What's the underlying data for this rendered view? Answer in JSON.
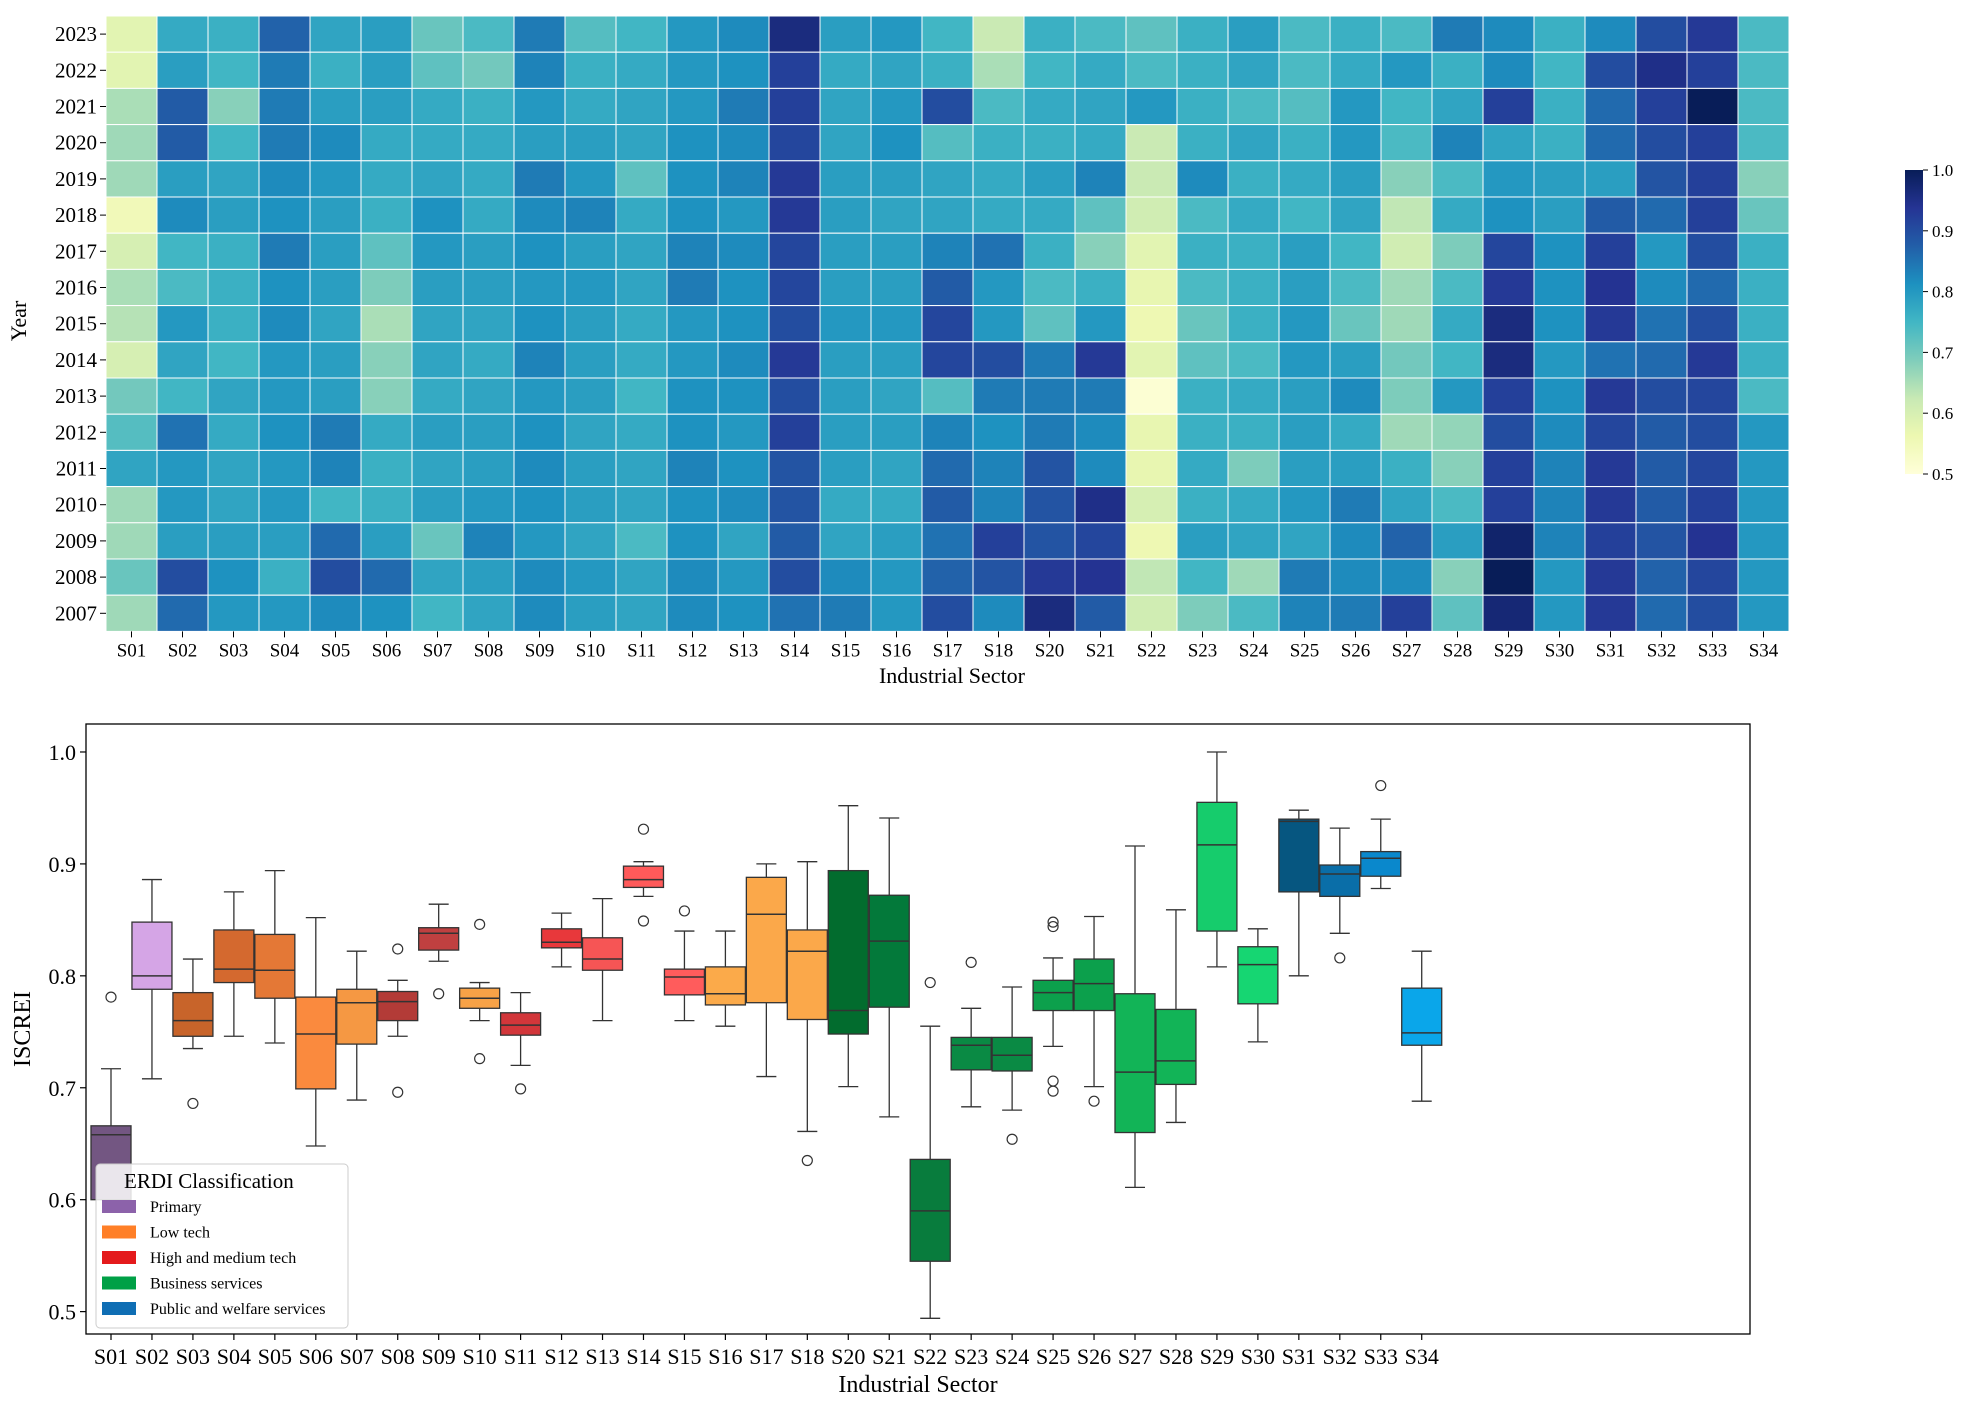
{
  "chart_data": [
    {
      "type": "heatmap",
      "xlabel": "Industrial Sector",
      "ylabel": "Year",
      "x_categories": [
        "S01",
        "S02",
        "S03",
        "S04",
        "S05",
        "S06",
        "S07",
        "S08",
        "S09",
        "S10",
        "S11",
        "S12",
        "S13",
        "S14",
        "S15",
        "S16",
        "S17",
        "S18",
        "S20",
        "S21",
        "S22",
        "S23",
        "S24",
        "S25",
        "S26",
        "S27",
        "S28",
        "S29",
        "S30",
        "S31",
        "S32",
        "S33",
        "S34"
      ],
      "y_categories": [
        "2023",
        "2022",
        "2021",
        "2020",
        "2019",
        "2018",
        "2017",
        "2016",
        "2015",
        "2014",
        "2013",
        "2012",
        "2011",
        "2010",
        "2009",
        "2008",
        "2007"
      ],
      "colorbar": {
        "min": 0.5,
        "max": 1.0,
        "ticks": [
          "0.5",
          "0.6",
          "0.7",
          "0.8",
          "0.9",
          "1.0"
        ],
        "colormap": "YlGnBu"
      },
      "values": [
        [
          0.58,
          0.77,
          0.76,
          0.87,
          0.78,
          0.79,
          0.71,
          0.74,
          0.84,
          0.73,
          0.75,
          0.8,
          0.82,
          0.96,
          0.79,
          0.8,
          0.75,
          0.62,
          0.76,
          0.74,
          0.72,
          0.76,
          0.79,
          0.74,
          0.76,
          0.74,
          0.84,
          0.82,
          0.76,
          0.82,
          0.9,
          0.93,
          0.74
        ],
        [
          0.58,
          0.79,
          0.75,
          0.84,
          0.76,
          0.79,
          0.72,
          0.7,
          0.83,
          0.76,
          0.77,
          0.8,
          0.81,
          0.92,
          0.77,
          0.78,
          0.76,
          0.65,
          0.75,
          0.77,
          0.74,
          0.76,
          0.78,
          0.74,
          0.77,
          0.8,
          0.76,
          0.82,
          0.75,
          0.9,
          0.95,
          0.92,
          0.74
        ],
        [
          0.65,
          0.88,
          0.68,
          0.84,
          0.79,
          0.79,
          0.77,
          0.76,
          0.8,
          0.77,
          0.78,
          0.8,
          0.84,
          0.92,
          0.78,
          0.8,
          0.9,
          0.74,
          0.77,
          0.78,
          0.8,
          0.76,
          0.74,
          0.73,
          0.8,
          0.75,
          0.78,
          0.92,
          0.76,
          0.86,
          0.92,
          1.0,
          0.74
        ],
        [
          0.66,
          0.88,
          0.75,
          0.84,
          0.82,
          0.77,
          0.77,
          0.77,
          0.79,
          0.79,
          0.78,
          0.81,
          0.82,
          0.91,
          0.78,
          0.81,
          0.73,
          0.76,
          0.76,
          0.77,
          0.62,
          0.76,
          0.78,
          0.76,
          0.8,
          0.74,
          0.83,
          0.78,
          0.76,
          0.86,
          0.9,
          0.92,
          0.74
        ],
        [
          0.66,
          0.79,
          0.78,
          0.82,
          0.8,
          0.77,
          0.78,
          0.77,
          0.84,
          0.8,
          0.72,
          0.81,
          0.83,
          0.93,
          0.79,
          0.79,
          0.78,
          0.77,
          0.79,
          0.83,
          0.62,
          0.82,
          0.76,
          0.77,
          0.79,
          0.68,
          0.74,
          0.8,
          0.79,
          0.79,
          0.89,
          0.92,
          0.68
        ],
        [
          0.55,
          0.82,
          0.79,
          0.81,
          0.79,
          0.76,
          0.81,
          0.77,
          0.82,
          0.83,
          0.77,
          0.81,
          0.8,
          0.93,
          0.79,
          0.78,
          0.78,
          0.77,
          0.77,
          0.72,
          0.61,
          0.74,
          0.77,
          0.75,
          0.78,
          0.63,
          0.77,
          0.81,
          0.79,
          0.88,
          0.86,
          0.92,
          0.71
        ],
        [
          0.6,
          0.75,
          0.76,
          0.84,
          0.79,
          0.72,
          0.8,
          0.79,
          0.81,
          0.79,
          0.78,
          0.83,
          0.82,
          0.91,
          0.79,
          0.79,
          0.83,
          0.85,
          0.76,
          0.68,
          0.58,
          0.76,
          0.76,
          0.79,
          0.75,
          0.61,
          0.69,
          0.91,
          0.81,
          0.92,
          0.8,
          0.9,
          0.76
        ],
        [
          0.65,
          0.74,
          0.76,
          0.81,
          0.79,
          0.69,
          0.79,
          0.79,
          0.8,
          0.8,
          0.78,
          0.84,
          0.81,
          0.91,
          0.79,
          0.79,
          0.88,
          0.8,
          0.74,
          0.76,
          0.57,
          0.74,
          0.76,
          0.79,
          0.74,
          0.66,
          0.74,
          0.93,
          0.81,
          0.94,
          0.82,
          0.86,
          0.76
        ],
        [
          0.64,
          0.8,
          0.76,
          0.82,
          0.78,
          0.65,
          0.78,
          0.78,
          0.81,
          0.79,
          0.77,
          0.8,
          0.81,
          0.9,
          0.8,
          0.8,
          0.91,
          0.8,
          0.72,
          0.8,
          0.56,
          0.71,
          0.76,
          0.8,
          0.71,
          0.66,
          0.77,
          0.96,
          0.81,
          0.93,
          0.85,
          0.9,
          0.76
        ],
        [
          0.6,
          0.78,
          0.75,
          0.8,
          0.79,
          0.68,
          0.78,
          0.77,
          0.83,
          0.79,
          0.77,
          0.8,
          0.82,
          0.93,
          0.79,
          0.79,
          0.91,
          0.9,
          0.84,
          0.93,
          0.58,
          0.72,
          0.74,
          0.8,
          0.79,
          0.7,
          0.75,
          0.96,
          0.8,
          0.85,
          0.86,
          0.93,
          0.76
        ],
        [
          0.7,
          0.75,
          0.78,
          0.8,
          0.79,
          0.68,
          0.77,
          0.78,
          0.8,
          0.79,
          0.75,
          0.81,
          0.81,
          0.9,
          0.79,
          0.78,
          0.73,
          0.84,
          0.84,
          0.84,
          0.51,
          0.76,
          0.77,
          0.79,
          0.82,
          0.69,
          0.8,
          0.92,
          0.81,
          0.93,
          0.9,
          0.91,
          0.74
        ],
        [
          0.73,
          0.85,
          0.77,
          0.81,
          0.84,
          0.77,
          0.79,
          0.79,
          0.81,
          0.78,
          0.77,
          0.81,
          0.8,
          0.92,
          0.79,
          0.79,
          0.83,
          0.81,
          0.84,
          0.82,
          0.57,
          0.76,
          0.76,
          0.79,
          0.77,
          0.66,
          0.67,
          0.9,
          0.82,
          0.91,
          0.88,
          0.9,
          0.8
        ],
        [
          0.78,
          0.8,
          0.78,
          0.8,
          0.83,
          0.76,
          0.78,
          0.79,
          0.82,
          0.79,
          0.78,
          0.83,
          0.81,
          0.89,
          0.79,
          0.78,
          0.86,
          0.83,
          0.89,
          0.82,
          0.57,
          0.77,
          0.69,
          0.79,
          0.79,
          0.76,
          0.68,
          0.92,
          0.83,
          0.93,
          0.88,
          0.91,
          0.8
        ],
        [
          0.66,
          0.8,
          0.78,
          0.8,
          0.75,
          0.76,
          0.79,
          0.8,
          0.81,
          0.79,
          0.78,
          0.81,
          0.82,
          0.89,
          0.77,
          0.77,
          0.88,
          0.83,
          0.89,
          0.95,
          0.6,
          0.76,
          0.77,
          0.8,
          0.84,
          0.78,
          0.74,
          0.92,
          0.83,
          0.93,
          0.88,
          0.92,
          0.8
        ],
        [
          0.66,
          0.79,
          0.79,
          0.79,
          0.86,
          0.79,
          0.71,
          0.83,
          0.8,
          0.78,
          0.74,
          0.81,
          0.78,
          0.88,
          0.78,
          0.79,
          0.85,
          0.92,
          0.89,
          0.91,
          0.56,
          0.79,
          0.78,
          0.78,
          0.82,
          0.87,
          0.79,
          0.98,
          0.83,
          0.92,
          0.89,
          0.94,
          0.8
        ],
        [
          0.71,
          0.9,
          0.81,
          0.76,
          0.9,
          0.86,
          0.78,
          0.79,
          0.82,
          0.8,
          0.78,
          0.82,
          0.8,
          0.9,
          0.82,
          0.8,
          0.87,
          0.89,
          0.93,
          0.94,
          0.63,
          0.75,
          0.66,
          0.84,
          0.82,
          0.82,
          0.68,
          1.0,
          0.8,
          0.93,
          0.87,
          0.91,
          0.8
        ],
        [
          0.66,
          0.86,
          0.8,
          0.8,
          0.82,
          0.81,
          0.75,
          0.78,
          0.82,
          0.79,
          0.78,
          0.82,
          0.81,
          0.85,
          0.84,
          0.8,
          0.9,
          0.82,
          0.96,
          0.88,
          0.61,
          0.69,
          0.74,
          0.83,
          0.84,
          0.92,
          0.72,
          0.97,
          0.8,
          0.93,
          0.86,
          0.9,
          0.8
        ]
      ]
    },
    {
      "type": "box",
      "xlabel": "Industrial Sector",
      "ylabel": "ISCREI",
      "ylim": [
        0.48,
        1.025
      ],
      "yticks": [
        0.5,
        0.6,
        0.7,
        0.8,
        0.9,
        1.0
      ],
      "ytick_labels": [
        "0.5",
        "0.6",
        "0.7",
        "0.8",
        "0.9",
        "1.0"
      ],
      "legend": {
        "title": "ERDI Classification",
        "placement": "lower-left",
        "entries": [
          {
            "label": "Primary",
            "color": "#8c62aa"
          },
          {
            "label": "Low tech",
            "color": "#ff7f27"
          },
          {
            "label": "High and medium tech",
            "color": "#e41a1c"
          },
          {
            "label": "Business services",
            "color": "#00a046"
          },
          {
            "label": "Public and welfare services",
            "color": "#0f6eb4"
          }
        ]
      },
      "boxes": [
        {
          "label": "S01",
          "color": "#735682",
          "whislo": 0.6,
          "q1": 0.6,
          "med": 0.658,
          "q3": 0.666,
          "whishi": 0.717,
          "fliers": [
            0.781
          ]
        },
        {
          "label": "S02",
          "color": "#d5a5e6",
          "whislo": 0.708,
          "q1": 0.788,
          "med": 0.8,
          "q3": 0.848,
          "whishi": 0.886,
          "fliers": []
        },
        {
          "label": "S03",
          "color": "#c8642a",
          "whislo": 0.735,
          "q1": 0.746,
          "med": 0.76,
          "q3": 0.785,
          "whishi": 0.815,
          "fliers": [
            0.686
          ]
        },
        {
          "label": "S04",
          "color": "#d4692f",
          "whislo": 0.746,
          "q1": 0.794,
          "med": 0.806,
          "q3": 0.841,
          "whishi": 0.875,
          "fliers": []
        },
        {
          "label": "S05",
          "color": "#e47836",
          "whislo": 0.74,
          "q1": 0.78,
          "med": 0.805,
          "q3": 0.837,
          "whishi": 0.894,
          "fliers": []
        },
        {
          "label": "S06",
          "color": "#fa8a3e",
          "whislo": 0.648,
          "q1": 0.699,
          "med": 0.748,
          "q3": 0.781,
          "whishi": 0.852,
          "fliers": []
        },
        {
          "label": "S07",
          "color": "#f59843",
          "whislo": 0.689,
          "q1": 0.739,
          "med": 0.776,
          "q3": 0.788,
          "whishi": 0.822,
          "fliers": []
        },
        {
          "label": "S08",
          "color": "#b33b37",
          "whislo": 0.746,
          "q1": 0.76,
          "med": 0.777,
          "q3": 0.786,
          "whishi": 0.796,
          "fliers": [
            0.824,
            0.696
          ]
        },
        {
          "label": "S09",
          "color": "#c04040",
          "whislo": 0.813,
          "q1": 0.823,
          "med": 0.838,
          "q3": 0.843,
          "whishi": 0.864,
          "fliers": [
            0.784
          ]
        },
        {
          "label": "S10",
          "color": "#f7a247",
          "whislo": 0.76,
          "q1": 0.771,
          "med": 0.78,
          "q3": 0.789,
          "whishi": 0.794,
          "fliers": [
            0.846,
            0.726
          ]
        },
        {
          "label": "S11",
          "color": "#d2363a",
          "whislo": 0.72,
          "q1": 0.747,
          "med": 0.756,
          "q3": 0.767,
          "whishi": 0.785,
          "fliers": [
            0.699
          ]
        },
        {
          "label": "S12",
          "color": "#e8383b",
          "whislo": 0.808,
          "q1": 0.825,
          "med": 0.83,
          "q3": 0.842,
          "whishi": 0.856,
          "fliers": []
        },
        {
          "label": "S13",
          "color": "#f65555",
          "whislo": 0.76,
          "q1": 0.805,
          "med": 0.815,
          "q3": 0.834,
          "whishi": 0.869,
          "fliers": []
        },
        {
          "label": "S14",
          "color": "#ff5a5a",
          "whislo": 0.871,
          "q1": 0.879,
          "med": 0.886,
          "q3": 0.898,
          "whishi": 0.902,
          "fliers": [
            0.931,
            0.849
          ]
        },
        {
          "label": "S15",
          "color": "#ff5c5c",
          "whislo": 0.76,
          "q1": 0.783,
          "med": 0.799,
          "q3": 0.806,
          "whishi": 0.84,
          "fliers": [
            0.858
          ]
        },
        {
          "label": "S16",
          "color": "#fbaa4a",
          "whislo": 0.755,
          "q1": 0.774,
          "med": 0.784,
          "q3": 0.808,
          "whishi": 0.84,
          "fliers": []
        },
        {
          "label": "S17",
          "color": "#fba84a",
          "whislo": 0.71,
          "q1": 0.776,
          "med": 0.855,
          "q3": 0.888,
          "whishi": 0.9,
          "fliers": []
        },
        {
          "label": "S18",
          "color": "#fba84a",
          "whislo": 0.661,
          "q1": 0.761,
          "med": 0.822,
          "q3": 0.841,
          "whishi": 0.902,
          "fliers": [
            0.635
          ]
        },
        {
          "label": "S20",
          "color": "#026c2e",
          "whislo": 0.701,
          "q1": 0.748,
          "med": 0.769,
          "q3": 0.894,
          "whishi": 0.952,
          "fliers": []
        },
        {
          "label": "S21",
          "color": "#03793a",
          "whislo": 0.674,
          "q1": 0.772,
          "med": 0.831,
          "q3": 0.872,
          "whishi": 0.941,
          "fliers": []
        },
        {
          "label": "S22",
          "color": "#087c3d",
          "whislo": 0.494,
          "q1": 0.545,
          "med": 0.59,
          "q3": 0.636,
          "whishi": 0.755,
          "fliers": [
            0.794
          ]
        },
        {
          "label": "S23",
          "color": "#0a8a44",
          "whislo": 0.683,
          "q1": 0.716,
          "med": 0.738,
          "q3": 0.745,
          "whishi": 0.771,
          "fliers": [
            0.812
          ]
        },
        {
          "label": "S24",
          "color": "#0a8a44",
          "whislo": 0.68,
          "q1": 0.715,
          "med": 0.729,
          "q3": 0.745,
          "whishi": 0.79,
          "fliers": [
            0.654
          ]
        },
        {
          "label": "S25",
          "color": "#0ca04c",
          "whislo": 0.737,
          "q1": 0.769,
          "med": 0.785,
          "q3": 0.796,
          "whishi": 0.816,
          "fliers": [
            0.848,
            0.844,
            0.706,
            0.697
          ]
        },
        {
          "label": "S26",
          "color": "#0ca04c",
          "whislo": 0.701,
          "q1": 0.769,
          "med": 0.793,
          "q3": 0.815,
          "whishi": 0.853,
          "fliers": [
            0.688
          ]
        },
        {
          "label": "S27",
          "color": "#12b457",
          "whislo": 0.611,
          "q1": 0.66,
          "med": 0.714,
          "q3": 0.784,
          "whishi": 0.916,
          "fliers": []
        },
        {
          "label": "S28",
          "color": "#12b457",
          "whislo": 0.669,
          "q1": 0.703,
          "med": 0.724,
          "q3": 0.77,
          "whishi": 0.859,
          "fliers": []
        },
        {
          "label": "S29",
          "color": "#16cc6c",
          "whislo": 0.808,
          "q1": 0.84,
          "med": 0.917,
          "q3": 0.955,
          "whishi": 1.0,
          "fliers": []
        },
        {
          "label": "S30",
          "color": "#16d672",
          "whislo": 0.741,
          "q1": 0.775,
          "med": 0.81,
          "q3": 0.826,
          "whishi": 0.842,
          "fliers": []
        },
        {
          "label": "S31",
          "color": "#065680",
          "whislo": 0.8,
          "q1": 0.875,
          "med": 0.938,
          "q3": 0.94,
          "whishi": 0.948,
          "fliers": []
        },
        {
          "label": "S32",
          "color": "#0a6ea8",
          "whislo": 0.838,
          "q1": 0.871,
          "med": 0.891,
          "q3": 0.899,
          "whishi": 0.932,
          "fliers": [
            0.816
          ]
        },
        {
          "label": "S33",
          "color": "#0a88cc",
          "whislo": 0.878,
          "q1": 0.889,
          "med": 0.905,
          "q3": 0.911,
          "whishi": 0.94,
          "fliers": [
            0.97
          ]
        },
        {
          "label": "S34",
          "color": "#0aa6ea",
          "whislo": 0.688,
          "q1": 0.738,
          "med": 0.749,
          "q3": 0.789,
          "whishi": 0.822,
          "fliers": []
        }
      ]
    }
  ]
}
